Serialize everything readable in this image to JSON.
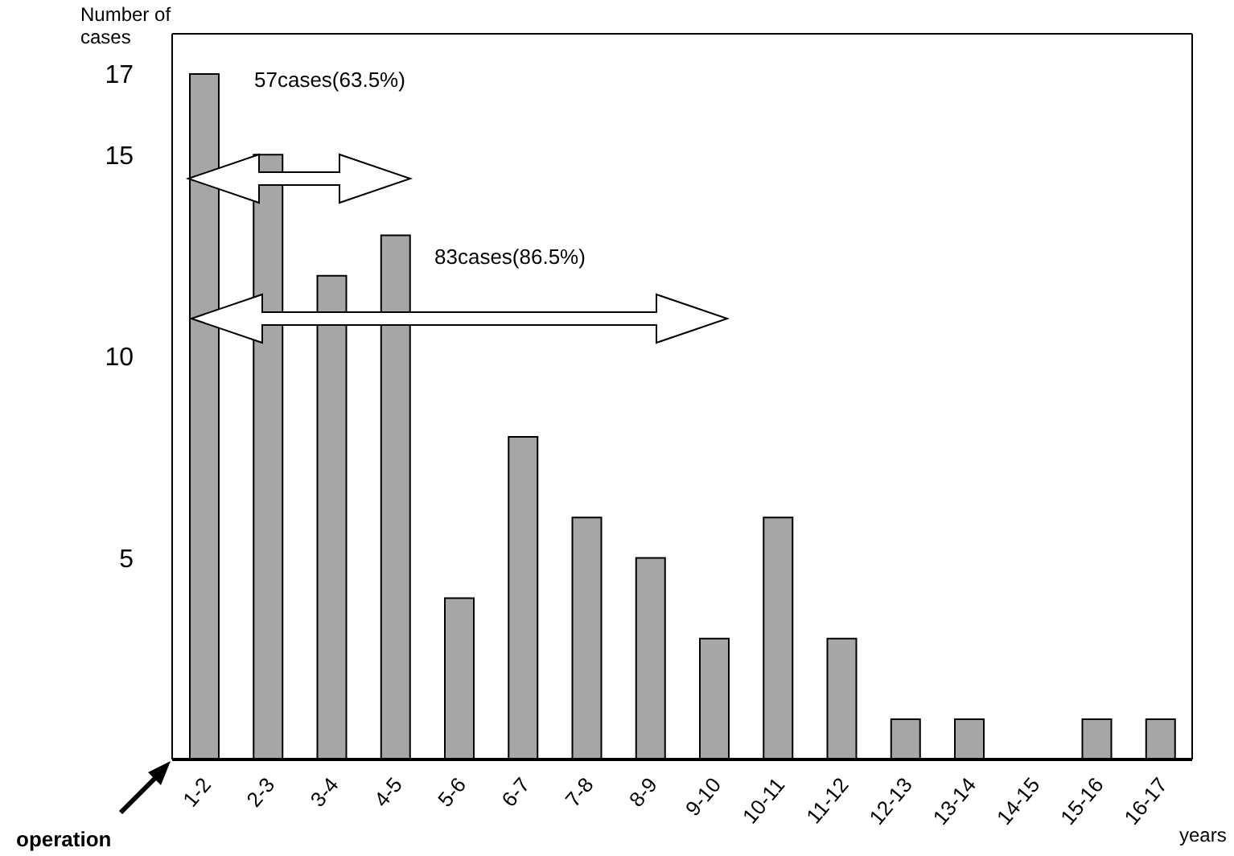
{
  "chart_data": {
    "type": "bar",
    "xlabel": "years",
    "ylabel": "Number of cases",
    "categories": [
      "1-2",
      "2-3",
      "3-4",
      "4-5",
      "5-6",
      "6-7",
      "7-8",
      "8-9",
      "9-10",
      "10-11",
      "11-12",
      "12-13",
      "13-14",
      "14-15",
      "15-16",
      "16-17"
    ],
    "values": [
      17,
      15,
      12,
      13,
      4,
      8,
      6,
      5,
      3,
      6,
      3,
      1,
      1,
      0,
      1,
      1
    ],
    "color": "#a6a6a6",
    "ylim": [
      0,
      18
    ],
    "yticks": [
      5,
      10,
      15,
      17
    ],
    "annotations": [
      "57cases(63.5%)",
      "83cases(86.5%)",
      "operation"
    ]
  }
}
